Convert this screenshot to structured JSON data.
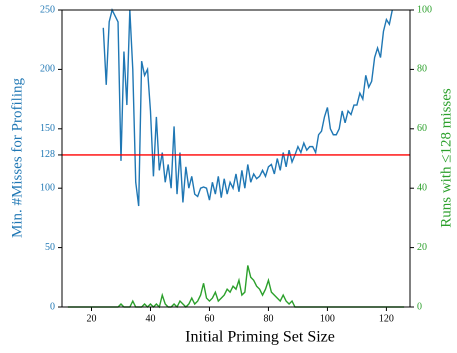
{
  "chart_data": {
    "type": "line",
    "x_label": "Initial Priming Set Size",
    "y_label": "Min. #Misses for Profiling",
    "y2_label": "Runs with ≤128 misses",
    "xlim": [
      10,
      128
    ],
    "xticks": [
      20,
      40,
      60,
      80,
      100,
      120
    ],
    "ylim": [
      0,
      250
    ],
    "yticks": [
      0,
      50,
      100,
      128,
      150,
      200,
      250
    ],
    "y2lim": [
      0,
      100
    ],
    "y2ticks": [
      0,
      20,
      40,
      60,
      80,
      100
    ],
    "hline": {
      "value": 128,
      "color": "#ff0000"
    },
    "series": [
      {
        "name": "Min. #Misses for Profiling",
        "color": "#1f77b4",
        "x": [
          24,
          25,
          26,
          27,
          28,
          29,
          30,
          31,
          32,
          33,
          34,
          35,
          36,
          37,
          38,
          39,
          40,
          41,
          42,
          43,
          44,
          45,
          46,
          47,
          48,
          49,
          50,
          51,
          52,
          53,
          54,
          55,
          56,
          57,
          58,
          59,
          60,
          61,
          62,
          63,
          64,
          65,
          66,
          67,
          68,
          69,
          70,
          71,
          72,
          73,
          74,
          75,
          76,
          77,
          78,
          79,
          80,
          81,
          82,
          83,
          84,
          85,
          86,
          87,
          88,
          89,
          90,
          91,
          92,
          93,
          94,
          95,
          96,
          97,
          98,
          99,
          100,
          101,
          102,
          103,
          104,
          105,
          106,
          107,
          108,
          109,
          110,
          111,
          112,
          113,
          114,
          115,
          116,
          117,
          118,
          119,
          120,
          121,
          122
        ],
        "values": [
          235,
          187,
          240,
          250,
          245,
          240,
          123,
          215,
          170,
          250,
          200,
          105,
          85,
          207,
          195,
          200,
          165,
          110,
          160,
          115,
          130,
          105,
          120,
          100,
          152,
          95,
          130,
          88,
          118,
          100,
          110,
          95,
          93,
          100,
          101,
          100,
          90,
          105,
          95,
          110,
          92,
          108,
          95,
          105,
          100,
          112,
          97,
          115,
          100,
          120,
          105,
          112,
          108,
          110,
          115,
          110,
          118,
          120,
          112,
          125,
          115,
          130,
          118,
          132,
          122,
          128,
          135,
          130,
          138,
          132,
          135,
          135,
          130,
          145,
          148,
          160,
          168,
          150,
          145,
          145,
          150,
          165,
          155,
          165,
          162,
          170,
          170,
          180,
          175,
          195,
          185,
          190,
          210,
          218,
          210,
          232,
          242,
          238,
          250
        ]
      },
      {
        "name": "Runs with ≤128 misses",
        "color": "#2ca02c",
        "axis": "y2",
        "x": [
          12,
          13,
          14,
          15,
          16,
          17,
          18,
          19,
          20,
          21,
          22,
          23,
          24,
          25,
          26,
          27,
          28,
          29,
          30,
          31,
          32,
          33,
          34,
          35,
          36,
          37,
          38,
          39,
          40,
          41,
          42,
          43,
          44,
          45,
          46,
          47,
          48,
          49,
          50,
          51,
          52,
          53,
          54,
          55,
          56,
          57,
          58,
          59,
          60,
          61,
          62,
          63,
          64,
          65,
          66,
          67,
          68,
          69,
          70,
          71,
          72,
          73,
          74,
          75,
          76,
          77,
          78,
          79,
          80,
          81,
          82,
          83,
          84,
          85,
          86,
          87,
          88,
          89,
          90,
          91,
          92,
          93,
          94,
          95,
          96,
          97,
          98,
          99,
          100,
          101,
          102,
          103,
          104,
          105,
          106,
          107,
          108,
          109,
          110,
          111,
          112,
          113,
          114,
          115,
          116,
          117,
          118,
          119,
          120,
          121,
          122,
          123,
          124,
          125,
          126
        ],
        "values": [
          0,
          0,
          0,
          0,
          0,
          0,
          0,
          0,
          0,
          0,
          0,
          0,
          0,
          0,
          0,
          0,
          0,
          0,
          1,
          0,
          0,
          0,
          2,
          0,
          0,
          0,
          1,
          0,
          1,
          0,
          1,
          0,
          4,
          1,
          0,
          0,
          1,
          0,
          2,
          1,
          0,
          1,
          3,
          1,
          2,
          4,
          8,
          3,
          2,
          3,
          5,
          2,
          3,
          4,
          6,
          5,
          7,
          6,
          9,
          4,
          5,
          14,
          10,
          9,
          7,
          6,
          4,
          6,
          9,
          5,
          4,
          3,
          2,
          4,
          2,
          1,
          2,
          0,
          0,
          0,
          0,
          0,
          0,
          0,
          0,
          0,
          0,
          0,
          0,
          0,
          0,
          0,
          0,
          0,
          0,
          0,
          0,
          0,
          0,
          0,
          0,
          0,
          0,
          0,
          0,
          0,
          0,
          0,
          0,
          0,
          0,
          0,
          0,
          0,
          0
        ]
      }
    ]
  }
}
